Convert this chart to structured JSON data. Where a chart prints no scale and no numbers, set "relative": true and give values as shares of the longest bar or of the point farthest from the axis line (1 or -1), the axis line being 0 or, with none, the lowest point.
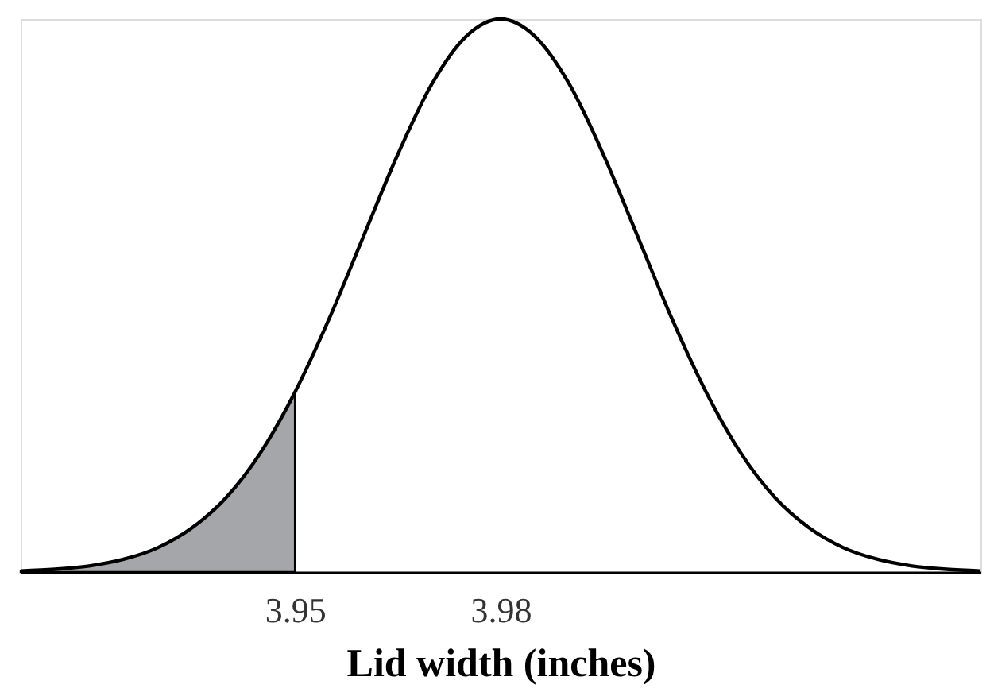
{
  "chart_data": {
    "type": "line",
    "relative": true,
    "xlabel": "Lid width (inches)",
    "xlim": [
      3.91,
      4.05
    ],
    "xticks": [
      3.95,
      3.98
    ],
    "grid": false,
    "marker": "none",
    "line_style": "solid",
    "series": [
      {
        "type": "area",
        "color": "#a4a6a9",
        "x": [
          3.91,
          3.915,
          3.92,
          3.925,
          3.93,
          3.935,
          3.94,
          3.945,
          3.95
        ],
        "values": [
          0.002,
          0.005,
          0.011,
          0.023,
          0.044,
          0.08,
          0.135,
          0.216,
          0.325
        ]
      },
      {
        "color": "#000000",
        "x": [
          3.91,
          3.915,
          3.92,
          3.925,
          3.93,
          3.935,
          3.94,
          3.945,
          3.95,
          3.955,
          3.96,
          3.965,
          3.97,
          3.975,
          3.98,
          3.985,
          3.99,
          3.995,
          4.0,
          4.005,
          4.01,
          4.015,
          4.02,
          4.025,
          4.03,
          4.035,
          4.04,
          4.045,
          4.05
        ],
        "values": [
          0.002,
          0.005,
          0.011,
          0.023,
          0.044,
          0.08,
          0.135,
          0.216,
          0.325,
          0.458,
          0.607,
          0.755,
          0.883,
          0.969,
          1,
          0.969,
          0.883,
          0.755,
          0.607,
          0.458,
          0.325,
          0.216,
          0.135,
          0.08,
          0.044,
          0.023,
          0.011,
          0.005,
          0.002
        ]
      }
    ]
  }
}
